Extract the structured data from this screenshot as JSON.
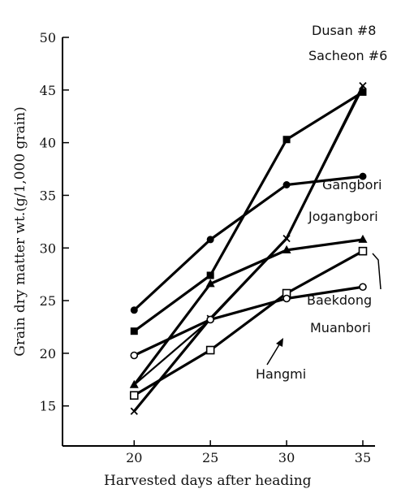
{
  "chart_data": {
    "type": "line",
    "title": "",
    "xlabel": "Harvested days after heading",
    "ylabel": "Grain dry matter wt.(g/1,000 grain)",
    "x": [
      20,
      25,
      30,
      35
    ],
    "xlim": [
      15.3,
      35.8
    ],
    "ylim": [
      11.2,
      50
    ],
    "x_ticks": [
      20,
      25,
      30,
      35
    ],
    "y_ticks": [
      15,
      20,
      25,
      30,
      35,
      40,
      45,
      50
    ],
    "grid": false,
    "series": [
      {
        "name": "Dusan #8",
        "marker": "filled-square",
        "values": [
          22.1,
          27.4,
          40.3,
          44.8
        ]
      },
      {
        "name": "Sacheon #6",
        "marker": "x",
        "values": [
          14.5,
          23.3,
          30.9,
          45.4
        ]
      },
      {
        "name": "Gangbori",
        "marker": "filled-circle",
        "values": [
          24.1,
          30.8,
          36.0,
          36.8
        ]
      },
      {
        "name": "Jogangbori",
        "marker": "filled-triangle",
        "values": [
          17.0,
          26.6,
          29.8,
          30.8
        ]
      },
      {
        "name": "Baekdong",
        "marker": "open-square",
        "values": [
          16.0,
          20.3,
          25.7,
          29.7
        ]
      },
      {
        "name": "Muanbori",
        "marker": "open-circle",
        "values": [
          19.8,
          23.2,
          25.2,
          26.3
        ]
      },
      {
        "name": "Hangmi",
        "marker": "none",
        "values": [
          17.0,
          23.2,
          30.9,
          45.2
        ]
      }
    ]
  }
}
